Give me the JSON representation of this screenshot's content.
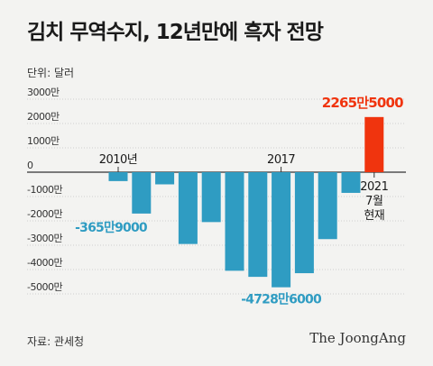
{
  "title": "김치 무역수지, 12년만에 흑자 전망",
  "unit_label": "단위: 달러",
  "source": "자료: 관세청",
  "brand": "The JoongAng",
  "chart_data": {
    "type": "bar",
    "categories": [
      "2010",
      "2011",
      "2012",
      "2013",
      "2014",
      "2015",
      "2016",
      "2017",
      "2018",
      "2019",
      "2020",
      "2021"
    ],
    "values": [
      -3659000,
      -17000000,
      -5000000,
      -29500000,
      -20500000,
      -40500000,
      -43000000,
      -47286000,
      -41500000,
      -27500000,
      -8500000,
      22655000
    ],
    "ylim": [
      -50000000,
      30000000
    ],
    "y_ticks": [
      {
        "value": 30000000,
        "label": "3000만"
      },
      {
        "value": 20000000,
        "label": "2000만"
      },
      {
        "value": 10000000,
        "label": "1000만"
      },
      {
        "value": 0,
        "label": "0"
      },
      {
        "value": -10000000,
        "label": "-1000만"
      },
      {
        "value": -20000000,
        "label": "-2000만"
      },
      {
        "value": -30000000,
        "label": "-3000만"
      },
      {
        "value": -40000000,
        "label": "-4000만"
      },
      {
        "value": -50000000,
        "label": "-5000만"
      }
    ],
    "x_labels": [
      {
        "index": 0,
        "label": "2010년"
      },
      {
        "index": 7,
        "label": "2017"
      },
      {
        "index": 11,
        "label": "2021"
      },
      {
        "index": 11,
        "label": "7월"
      },
      {
        "index": 11,
        "label": "현재"
      }
    ],
    "annotations": [
      {
        "index": 0,
        "label": "-365만9000"
      },
      {
        "index": 7,
        "label": "-4728만6000"
      },
      {
        "index": 11,
        "label": "2265만5000"
      }
    ],
    "colors": {
      "negative": "#2f9cc2",
      "highlight": "#f0340e",
      "negative_label": "#2f9cc2",
      "highlight_label": "#f0340e"
    },
    "grid": true,
    "highlight_index": 11
  }
}
